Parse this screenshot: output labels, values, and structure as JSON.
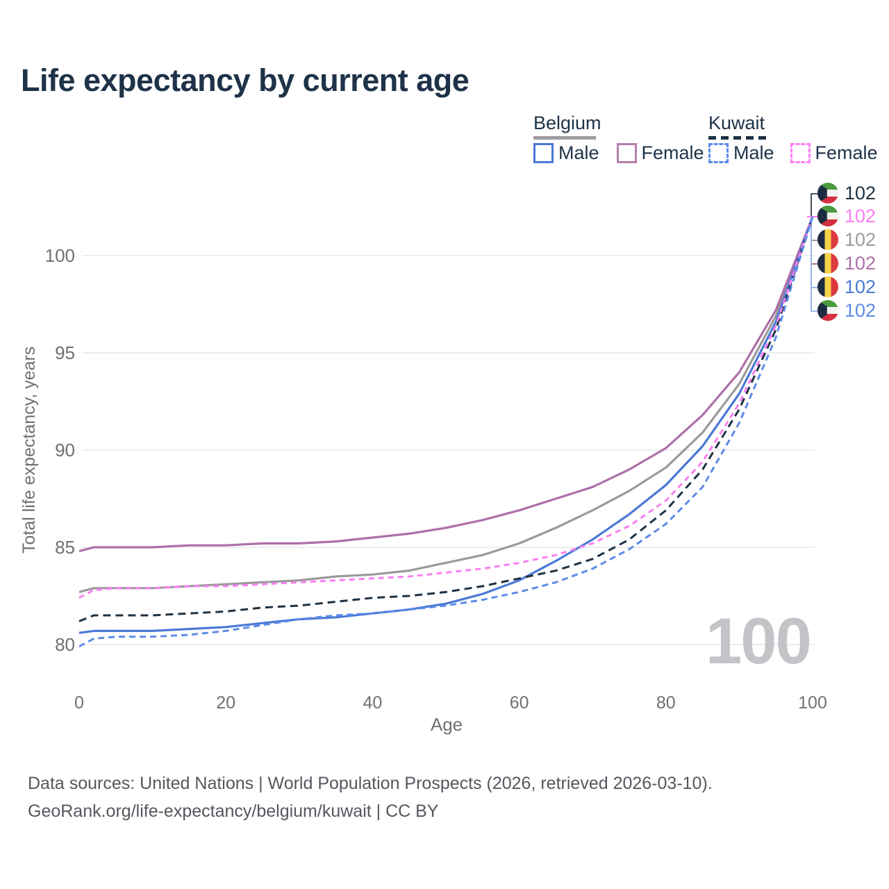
{
  "title": "Life expectancy by current age",
  "watermark_age": "100",
  "colors": {
    "title_text": "#1e3248",
    "axis_text": "#6f7073",
    "gridline": "#e7e7ea",
    "belgium_male": "#4a79d6",
    "belgium_female": "#ad6fa8",
    "belgium_both": "#9a9a9a",
    "kuwait_male": "#5c8be8",
    "kuwait_female": "#fb7ef2",
    "kuwait_both": "#1d3142",
    "watermark": "#c4c4c8",
    "footer_text": "#54575e"
  },
  "legend": {
    "groups": [
      {
        "name": "Belgium",
        "line_style": "solid",
        "underline_color": "#9e9ea2",
        "items": [
          {
            "label": "Male",
            "color": "#4a79d6",
            "dashed": false
          },
          {
            "label": "Female",
            "color": "#b57fae",
            "dashed": false
          }
        ]
      },
      {
        "name": "Kuwait",
        "line_style": "dashed",
        "underline_color": "#1d3142",
        "items": [
          {
            "label": "Male",
            "color": "#5c8be8",
            "dashed": true
          },
          {
            "label": "Female",
            "color": "#fb7ef2",
            "dashed": true
          }
        ]
      }
    ]
  },
  "axes": {
    "x_label": "Age",
    "y_label": "Total life expectancy, years"
  },
  "chart_data": {
    "type": "line",
    "title": "Life expectancy by current age",
    "xlabel": "Age",
    "ylabel": "Total life expectancy, years",
    "xlim": [
      0,
      100
    ],
    "ylim": [
      79.5,
      102.5
    ],
    "x_ticks": [
      0,
      20,
      40,
      60,
      80,
      100
    ],
    "y_ticks": [
      80,
      85,
      90,
      95,
      100
    ],
    "grid": "horizontal",
    "legend_position": "top-right",
    "x": [
      0,
      2,
      5,
      10,
      15,
      20,
      25,
      30,
      35,
      40,
      45,
      50,
      55,
      60,
      65,
      70,
      75,
      80,
      85,
      90,
      95,
      100
    ],
    "series": [
      {
        "name": "Belgium Both sexes",
        "country": "Belgium",
        "sex": "Both sexes",
        "color": "#9a9a9a",
        "dashed": false,
        "values": [
          82.7,
          82.9,
          82.9,
          82.9,
          83.0,
          83.1,
          83.2,
          83.3,
          83.5,
          83.6,
          83.8,
          84.2,
          84.6,
          85.2,
          86.0,
          86.9,
          87.9,
          89.1,
          90.9,
          93.4,
          96.9,
          102
        ]
      },
      {
        "name": "Belgium Female",
        "country": "Belgium",
        "sex": "Female",
        "color": "#ad6fa8",
        "dashed": false,
        "values": [
          84.8,
          85.0,
          85.0,
          85.0,
          85.1,
          85.1,
          85.2,
          85.2,
          85.3,
          85.5,
          85.7,
          86.0,
          86.4,
          86.9,
          87.5,
          88.1,
          89.0,
          90.1,
          91.8,
          94.0,
          97.2,
          102
        ]
      },
      {
        "name": "Belgium Male",
        "country": "Belgium",
        "sex": "Male",
        "color": "#4a79d6",
        "dashed": false,
        "values": [
          80.6,
          80.7,
          80.7,
          80.7,
          80.8,
          80.9,
          81.1,
          81.3,
          81.4,
          81.6,
          81.8,
          82.1,
          82.6,
          83.3,
          84.3,
          85.4,
          86.7,
          88.2,
          90.2,
          92.9,
          96.6,
          102
        ]
      },
      {
        "name": "Kuwait Both sexes",
        "country": "Kuwait",
        "sex": "Both sexes",
        "color": "#1d3142",
        "dashed": true,
        "values": [
          81.2,
          81.5,
          81.5,
          81.5,
          81.6,
          81.7,
          81.9,
          82.0,
          82.2,
          82.4,
          82.5,
          82.7,
          83.0,
          83.4,
          83.8,
          84.4,
          85.4,
          86.9,
          89.0,
          92.1,
          96.2,
          102
        ]
      },
      {
        "name": "Kuwait Female",
        "country": "Kuwait",
        "sex": "Female",
        "color": "#fb7ef2",
        "dashed": true,
        "values": [
          82.4,
          82.8,
          82.9,
          82.9,
          83.0,
          83.0,
          83.1,
          83.2,
          83.3,
          83.4,
          83.5,
          83.7,
          83.9,
          84.2,
          84.6,
          85.2,
          86.1,
          87.4,
          89.4,
          92.4,
          96.4,
          102
        ]
      },
      {
        "name": "Kuwait Male",
        "country": "Kuwait",
        "sex": "Male",
        "color": "#5c8be8",
        "dashed": true,
        "values": [
          79.9,
          80.3,
          80.4,
          80.4,
          80.5,
          80.7,
          81.0,
          81.3,
          81.5,
          81.6,
          81.8,
          82.0,
          82.3,
          82.7,
          83.2,
          83.9,
          84.9,
          86.2,
          88.1,
          91.4,
          95.8,
          102
        ]
      }
    ]
  },
  "end_labels": [
    {
      "flag": "kw",
      "country": "Kuwait",
      "value": "102",
      "color": "#1d3142"
    },
    {
      "flag": "kw",
      "country": "Kuwait",
      "value": "102",
      "color": "#fb7ef2"
    },
    {
      "flag": "be",
      "country": "Belgium",
      "value": "102",
      "color": "#9a9a9a"
    },
    {
      "flag": "be",
      "country": "Belgium",
      "value": "102",
      "color": "#ad6fa8"
    },
    {
      "flag": "be",
      "country": "Belgium",
      "value": "102",
      "color": "#4a79d6"
    },
    {
      "flag": "kw",
      "country": "Kuwait",
      "value": "102",
      "color": "#5c8be8"
    }
  ],
  "footer": {
    "line1": "Data sources: United Nations | World Population Prospects (2026, retrieved 2026-03-10).",
    "line2": "GeoRank.org/life-expectancy/belgium/kuwait | CC BY"
  }
}
